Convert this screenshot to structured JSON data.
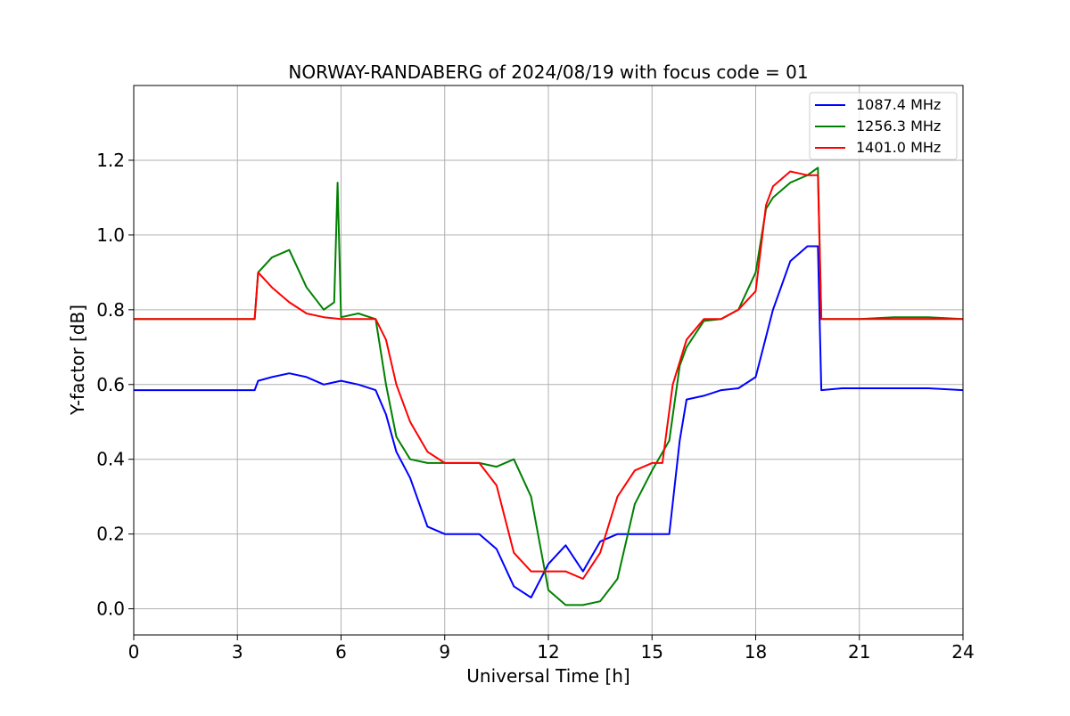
{
  "chart_data": {
    "type": "line",
    "title": "NORWAY-RANDABERG of 2024/08/19 with focus code = 01",
    "xlabel": "Universal Time [h]",
    "ylabel": "Y-factor [dB]",
    "xlim": [
      0,
      24
    ],
    "ylim": [
      -0.07,
      1.4
    ],
    "xticks": [
      0,
      3,
      6,
      9,
      12,
      15,
      18,
      21,
      24
    ],
    "xtick_labels": [
      "0",
      "3",
      "6",
      "9",
      "12",
      "15",
      "18",
      "21",
      "24"
    ],
    "yticks": [
      0.0,
      0.2,
      0.4,
      0.6,
      0.8,
      1.0,
      1.2
    ],
    "ytick_labels": [
      "0.0",
      "0.2",
      "0.4",
      "0.6",
      "0.8",
      "1.0",
      "1.2"
    ],
    "grid": true,
    "legend_position": "top-right",
    "series": [
      {
        "name": "1087.4 MHz",
        "color": "#0000ff",
        "x": [
          0,
          3.5,
          3.6,
          4.0,
          4.5,
          5.0,
          5.5,
          6.0,
          6.5,
          7.0,
          7.3,
          7.6,
          8.0,
          8.5,
          9.0,
          9.5,
          10.0,
          10.5,
          11.0,
          11.5,
          12.0,
          12.5,
          13.0,
          13.5,
          14.0,
          14.5,
          15.0,
          15.5,
          15.8,
          16.0,
          16.5,
          17.0,
          17.5,
          18.0,
          18.5,
          19.0,
          19.5,
          19.8,
          19.9,
          20.5,
          21.0,
          22.0,
          23.0,
          24.0
        ],
        "y": [
          0.585,
          0.585,
          0.61,
          0.62,
          0.63,
          0.62,
          0.6,
          0.61,
          0.6,
          0.585,
          0.52,
          0.42,
          0.35,
          0.22,
          0.2,
          0.2,
          0.2,
          0.16,
          0.06,
          0.03,
          0.12,
          0.17,
          0.1,
          0.18,
          0.2,
          0.2,
          0.2,
          0.2,
          0.45,
          0.56,
          0.57,
          0.585,
          0.59,
          0.62,
          0.8,
          0.93,
          0.97,
          0.97,
          0.585,
          0.59,
          0.59,
          0.59,
          0.59,
          0.585
        ]
      },
      {
        "name": "1256.3 MHz",
        "color": "#008000",
        "x": [
          0,
          3.5,
          3.6,
          4.0,
          4.5,
          5.0,
          5.5,
          5.8,
          5.9,
          6.0,
          6.5,
          7.0,
          7.3,
          7.6,
          8.0,
          8.5,
          9.0,
          9.5,
          10.0,
          10.5,
          11.0,
          11.5,
          12.0,
          12.5,
          13.0,
          13.5,
          14.0,
          14.5,
          15.0,
          15.5,
          15.8,
          16.0,
          16.5,
          17.0,
          17.5,
          18.0,
          18.3,
          18.5,
          19.0,
          19.5,
          19.8,
          19.9,
          20.5,
          21.0,
          22.0,
          23.0,
          24.0
        ],
        "y": [
          0.775,
          0.775,
          0.9,
          0.94,
          0.96,
          0.86,
          0.8,
          0.82,
          1.14,
          0.78,
          0.79,
          0.775,
          0.6,
          0.46,
          0.4,
          0.39,
          0.39,
          0.39,
          0.39,
          0.38,
          0.4,
          0.3,
          0.05,
          0.01,
          0.01,
          0.02,
          0.08,
          0.28,
          0.37,
          0.45,
          0.65,
          0.7,
          0.77,
          0.775,
          0.8,
          0.9,
          1.07,
          1.1,
          1.14,
          1.16,
          1.18,
          0.775,
          0.775,
          0.775,
          0.78,
          0.78,
          0.775
        ]
      },
      {
        "name": "1401.0 MHz",
        "color": "#ff0000",
        "x": [
          0,
          3.5,
          3.6,
          4.0,
          4.5,
          5.0,
          5.5,
          6.0,
          6.5,
          7.0,
          7.3,
          7.6,
          8.0,
          8.5,
          9.0,
          9.5,
          10.0,
          10.5,
          11.0,
          11.5,
          12.0,
          12.5,
          13.0,
          13.5,
          14.0,
          14.5,
          15.0,
          15.3,
          15.6,
          16.0,
          16.5,
          17.0,
          17.5,
          18.0,
          18.3,
          18.5,
          19.0,
          19.5,
          19.8,
          19.9,
          20.5,
          21.0,
          22.0,
          23.0,
          24.0
        ],
        "y": [
          0.775,
          0.775,
          0.9,
          0.86,
          0.82,
          0.79,
          0.78,
          0.775,
          0.775,
          0.775,
          0.72,
          0.6,
          0.5,
          0.42,
          0.39,
          0.39,
          0.39,
          0.33,
          0.15,
          0.1,
          0.1,
          0.1,
          0.08,
          0.15,
          0.3,
          0.37,
          0.39,
          0.39,
          0.6,
          0.72,
          0.775,
          0.775,
          0.8,
          0.85,
          1.08,
          1.13,
          1.17,
          1.16,
          1.16,
          0.775,
          0.775,
          0.775,
          0.775,
          0.775,
          0.775
        ]
      }
    ]
  }
}
